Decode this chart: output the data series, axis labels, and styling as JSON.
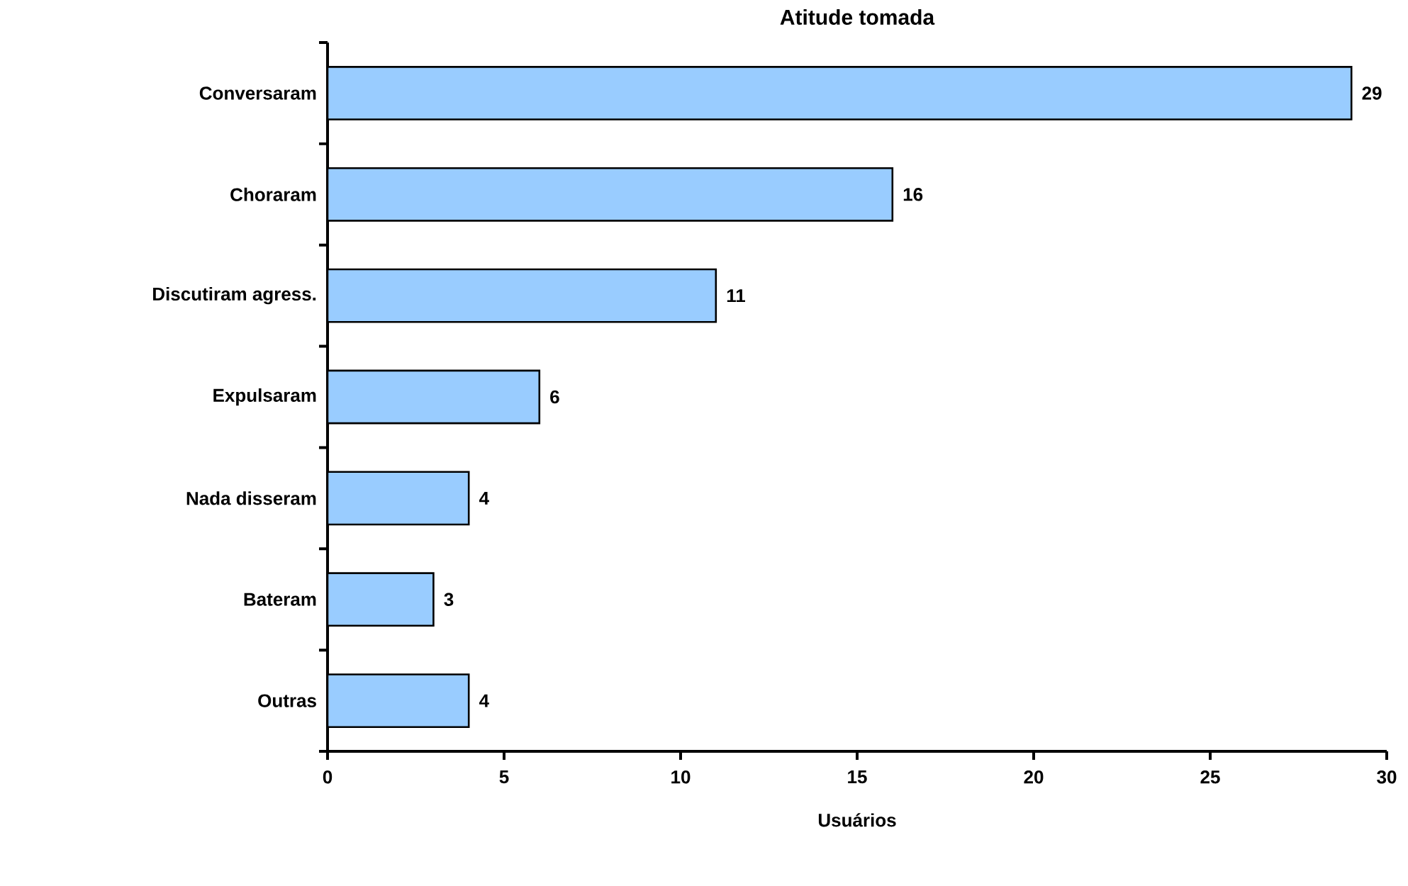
{
  "chart_data": {
    "type": "bar",
    "orientation": "horizontal",
    "title": "Atitude tomada",
    "xlabel": "Usuários",
    "categories": [
      "Conversaram",
      "Choraram",
      "Discutiram agress.",
      "Expulsaram",
      "Nada disseram",
      "Bateram",
      "Outras"
    ],
    "values": [
      29,
      16,
      11,
      6,
      4,
      3,
      4
    ],
    "color": "#99ccff",
    "xlim": [
      0,
      30
    ],
    "xticks": [
      0,
      5,
      10,
      15,
      20,
      25,
      30
    ],
    "data_labels": true
  }
}
